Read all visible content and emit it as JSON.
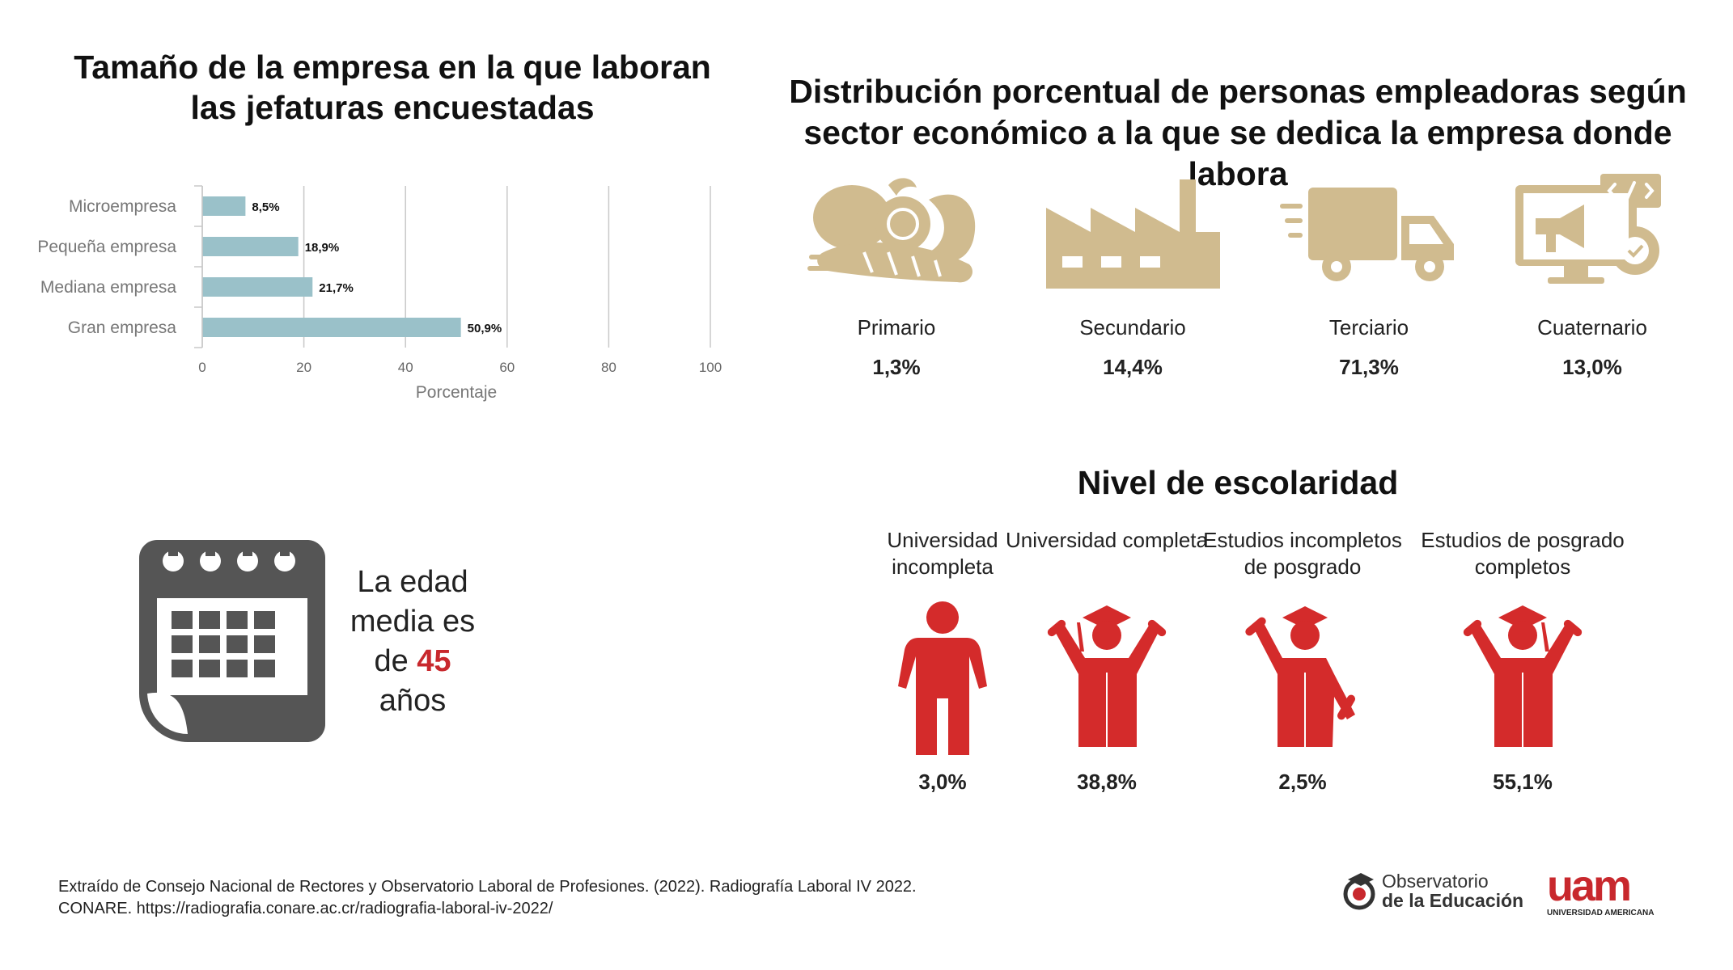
{
  "size_chart": {
    "title": "Tamaño de la empresa en la que laboran las jefaturas encuestadas",
    "xlabel": "Porcentaje"
  },
  "chart_data": {
    "type": "bar",
    "orientation": "horizontal",
    "categories": [
      "Microempresa",
      "Pequeña empresa",
      "Mediana empresa",
      "Gran empresa"
    ],
    "values": [
      8.5,
      18.9,
      21.7,
      50.9
    ],
    "value_labels": [
      "8,5%",
      "18,9%",
      "21,7%",
      "50,9%"
    ],
    "xlim": [
      0,
      100
    ],
    "xticks": [
      "0",
      "20",
      "40",
      "60",
      "80",
      "100"
    ],
    "xlabel": "Porcentaje",
    "grid": true,
    "bar_color": "#9ac1c9"
  },
  "sectors": {
    "title": "Distribución porcentual de personas empleadoras según sector económico a la que se dedica la empresa donde labora",
    "items": [
      {
        "label": "Primario",
        "value": "1,3%",
        "icon": "vegetables-icon"
      },
      {
        "label": "Secundario",
        "value": "14,4%",
        "icon": "factory-icon"
      },
      {
        "label": "Terciario",
        "value": "71,3%",
        "icon": "truck-icon"
      },
      {
        "label": "Cuaternario",
        "value": "13,0%",
        "icon": "computer-marketing-icon"
      }
    ],
    "icon_color": "#d0bb8f"
  },
  "education": {
    "title": "Nivel de escolaridad",
    "items": [
      {
        "label": "Universidad incompleta",
        "value": "3,0%",
        "icon": "person-icon"
      },
      {
        "label": "Universidad completa",
        "value": "38,8%",
        "icon": "graduate-celebrating-icon"
      },
      {
        "label": "Estudios incompletos de posgrado",
        "value": "2,5%",
        "icon": "graduate-diploma-icon"
      },
      {
        "label": "Estudios de posgrado completos",
        "value": "55,1%",
        "icon": "graduate-celebrating-icon"
      }
    ],
    "icon_color": "#d42b2b"
  },
  "age": {
    "text_before": "La edad media es de",
    "value": "45",
    "text_after": "años",
    "accent": "#c8282d",
    "icon_color": "#555555"
  },
  "source": {
    "line1": "Extraído de Consejo Nacional de Rectores y Observatorio Laboral de Profesiones. (2022). Radiografía Laboral IV 2022.",
    "line2": "CONARE. https://radiografia.conare.ac.cr/radiografia-laboral-iv-2022/"
  },
  "logos": {
    "observatorio_line1": "Observatorio",
    "observatorio_line2": "de la Educación",
    "uam_mark": "uam",
    "uam_name": "UNIVERSIDAD AMERICANA"
  }
}
